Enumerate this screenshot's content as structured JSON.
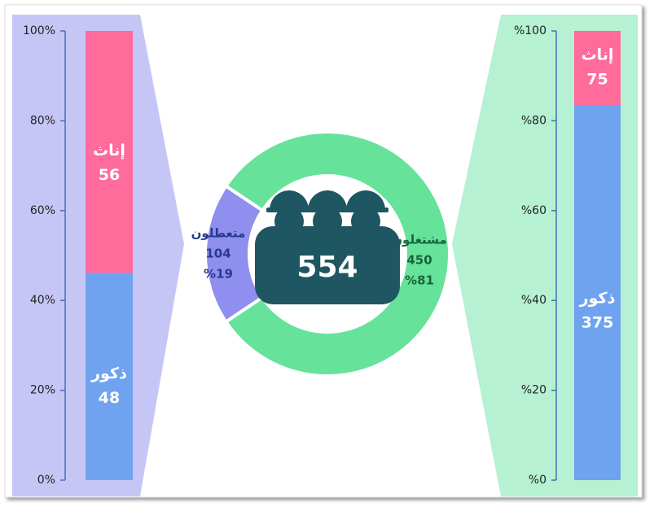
{
  "chart_data": [
    {
      "type": "bar",
      "stacking": "percent",
      "series": [
        {
          "name": "ذكور",
          "color": "#6fa3f0",
          "values": [
            48
          ]
        },
        {
          "name": "إناث",
          "color": "#ff6b9b",
          "values": [
            56
          ]
        }
      ],
      "ylim": [
        0,
        100
      ],
      "yticks": [
        {
          "value": 0,
          "label": "0%"
        },
        {
          "value": 20,
          "label": "20%"
        },
        {
          "value": 40,
          "label": "40%"
        },
        {
          "value": 60,
          "label": "60%"
        },
        {
          "value": 80,
          "label": "80%"
        },
        {
          "value": 100,
          "label": "100%"
        }
      ]
    },
    {
      "type": "donut",
      "total": 554,
      "categories": [
        "مشتغلون",
        "متعطلون"
      ],
      "values": [
        450,
        104
      ],
      "percent_labels": [
        "%81",
        "%19"
      ],
      "colors": [
        "#66e29a",
        "#8f8fef"
      ],
      "label_colors": [
        "#17663a",
        "#283a8c"
      ]
    },
    {
      "type": "bar",
      "stacking": "percent",
      "series": [
        {
          "name": "ذكور",
          "color": "#6fa3f0",
          "values": [
            375
          ]
        },
        {
          "name": "إناث",
          "color": "#ff6b9b",
          "values": [
            75
          ]
        }
      ],
      "ylim": [
        0,
        100
      ],
      "yticks": [
        {
          "value": 0,
          "label": "%0"
        },
        {
          "value": 20,
          "label": "%20"
        },
        {
          "value": 40,
          "label": "%40"
        },
        {
          "value": 60,
          "label": "%60"
        },
        {
          "value": 80,
          "label": "%80"
        },
        {
          "value": 100,
          "label": "%100"
        }
      ]
    }
  ]
}
